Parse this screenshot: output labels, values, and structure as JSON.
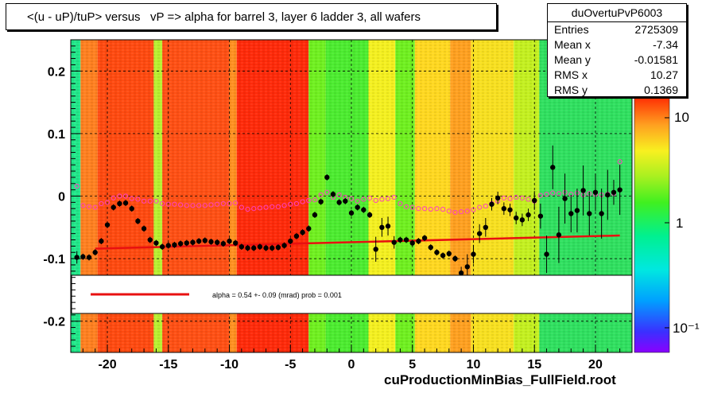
{
  "title": "<(u - uP)/tuP> versus   vP => alpha for barrel 3, layer 6 ladder 3, all wafers",
  "stats": {
    "name": "duOvertuPvP6003",
    "rows": [
      {
        "label": "Entries",
        "value": "2725309"
      },
      {
        "label": "Mean x",
        "value": "-7.34"
      },
      {
        "label": "Mean y",
        "value": "-0.01581"
      },
      {
        "label": "RMS x",
        "value": "10.27"
      },
      {
        "label": "RMS y",
        "value": "0.1369"
      }
    ]
  },
  "legend": {
    "fit_text": "alpha =    0.54 +-  0.09 (mrad) prob = 0.001",
    "line_color": "#e81010"
  },
  "footer": "cuProductionMinBias_FullField.root",
  "chart_data": {
    "type": "heatmap",
    "xlim": [
      -23,
      23
    ],
    "ylim": [
      -0.25,
      0.25
    ],
    "x_ticks": [
      -20,
      -15,
      -10,
      -5,
      0,
      5,
      10,
      15,
      20
    ],
    "y_ticks": [
      0.2,
      0.1,
      0,
      -0.1,
      -0.2
    ],
    "grid": true,
    "colorbar": {
      "log_scale": true,
      "tick_labels": [
        "10",
        "1",
        "10⁻¹"
      ]
    },
    "heatmap_bands": [
      {
        "x": [
          -23,
          -22.2
        ],
        "level": "cyan",
        "color": "#22e88a"
      },
      {
        "x": [
          -22.2,
          -20.8
        ],
        "level": "orange",
        "color": "#ff8020"
      },
      {
        "x": [
          -20.8,
          -16.2
        ],
        "level": "red-orange",
        "color": "#ff4a10"
      },
      {
        "x": [
          -16.2,
          -15.5
        ],
        "level": "yellow-green",
        "color": "#b8f030"
      },
      {
        "x": [
          -15.5,
          -10
        ],
        "level": "red-orange",
        "color": "#ff5014"
      },
      {
        "x": [
          -10,
          -9.4
        ],
        "level": "orange",
        "color": "#ff9020"
      },
      {
        "x": [
          -9.4,
          -3.5
        ],
        "level": "red",
        "color": "#ff2a0a"
      },
      {
        "x": [
          -3.5,
          -2.1
        ],
        "level": "green",
        "color": "#70f020"
      },
      {
        "x": [
          -2.1,
          1.4
        ],
        "level": "green",
        "color": "#4cec30"
      },
      {
        "x": [
          1.4,
          3.6
        ],
        "level": "yellow",
        "color": "#f4f020"
      },
      {
        "x": [
          3.6,
          5.2
        ],
        "level": "green",
        "color": "#70f020"
      },
      {
        "x": [
          5.2,
          8.1
        ],
        "level": "yellow",
        "color": "#ffd820"
      },
      {
        "x": [
          8.1,
          9.8
        ],
        "level": "orange",
        "color": "#ffa020"
      },
      {
        "x": [
          9.8,
          13.3
        ],
        "level": "yellow",
        "color": "#f8e020"
      },
      {
        "x": [
          13.3,
          15.4
        ],
        "level": "yellow-green",
        "color": "#c4f020"
      },
      {
        "x": [
          15.4,
          23
        ],
        "level": "green-cyan",
        "color": "#30e060"
      }
    ],
    "series": [
      {
        "name": "mean",
        "marker": "filled-circle",
        "color": "#000000",
        "x": [
          -22.5,
          -22,
          -21.5,
          -21,
          -20.5,
          -20,
          -19.5,
          -19,
          -18.5,
          -18,
          -17.5,
          -17,
          -16.5,
          -16,
          -15.5,
          -15,
          -14.5,
          -14,
          -13.5,
          -13,
          -12.5,
          -12,
          -11.5,
          -11,
          -10.5,
          -10,
          -9.5,
          -9,
          -8.5,
          -8,
          -7.5,
          -7,
          -6.5,
          -6,
          -5.5,
          -5,
          -4.5,
          -4,
          -3.5,
          -3,
          -2.5,
          -2,
          -1.5,
          -1,
          -0.5,
          0,
          0.5,
          1,
          1.5,
          2,
          2.5,
          3,
          3.5,
          4,
          4.5,
          5,
          5.5,
          6,
          6.5,
          7,
          7.5,
          8,
          8.5,
          9,
          9.5,
          10,
          10.5,
          11,
          11.5,
          12,
          12.5,
          13,
          13.5,
          14,
          14.5,
          15,
          15.5,
          16,
          16.5,
          17,
          17.5,
          18,
          18.5,
          19,
          19.5,
          20,
          20.5,
          21,
          21.5,
          22
        ],
        "y": [
          -0.098,
          -0.097,
          -0.098,
          -0.09,
          -0.072,
          -0.046,
          -0.018,
          -0.012,
          -0.011,
          -0.02,
          -0.04,
          -0.052,
          -0.07,
          -0.075,
          -0.081,
          -0.079,
          -0.078,
          -0.076,
          -0.075,
          -0.074,
          -0.072,
          -0.071,
          -0.073,
          -0.074,
          -0.076,
          -0.072,
          -0.075,
          -0.081,
          -0.083,
          -0.083,
          -0.081,
          -0.083,
          -0.083,
          -0.082,
          -0.079,
          -0.072,
          -0.064,
          -0.058,
          -0.052,
          -0.03,
          -0.009,
          0.03,
          0.003,
          -0.01,
          -0.008,
          -0.027,
          -0.018,
          -0.022,
          -0.03,
          -0.085,
          -0.05,
          -0.048,
          -0.074,
          -0.07,
          -0.07,
          -0.075,
          -0.072,
          -0.067,
          -0.082,
          -0.09,
          -0.095,
          -0.092,
          -0.1,
          -0.123,
          -0.113,
          -0.093,
          -0.06,
          -0.05,
          -0.013,
          -0.003,
          -0.02,
          -0.022,
          -0.035,
          -0.038,
          -0.03,
          -0.007,
          -0.032,
          -0.093,
          0.046,
          -0.062,
          -0.004,
          -0.028,
          -0.023,
          0.009,
          -0.028,
          0.006,
          -0.028,
          0.002,
          0.006,
          0.01
        ],
        "y_err": [
          0.01,
          0.005,
          0.005,
          0.005,
          0.005,
          0.005,
          0.005,
          0.005,
          0.005,
          0.005,
          0.005,
          0.005,
          0.005,
          0.005,
          0.005,
          0.005,
          0.005,
          0.005,
          0.005,
          0.005,
          0.005,
          0.005,
          0.005,
          0.005,
          0.005,
          0.005,
          0.005,
          0.005,
          0.005,
          0.005,
          0.005,
          0.005,
          0.005,
          0.005,
          0.005,
          0.005,
          0.005,
          0.005,
          0.005,
          0.005,
          0.005,
          0.005,
          0.005,
          0.005,
          0.005,
          0.005,
          0.005,
          0.005,
          0.005,
          0.02,
          0.015,
          0.015,
          0.01,
          0.005,
          0.005,
          0.005,
          0.005,
          0.005,
          0.005,
          0.005,
          0.005,
          0.005,
          0.005,
          0.01,
          0.02,
          0.015,
          0.015,
          0.015,
          0.01,
          0.01,
          0.01,
          0.01,
          0.01,
          0.01,
          0.01,
          0.015,
          0.02,
          0.03,
          0.035,
          0.045,
          0.04,
          0.03,
          0.035,
          0.04,
          0.035,
          0.03,
          0.04,
          0.04,
          0.02,
          0.04
        ]
      },
      {
        "name": "mode",
        "marker": "open-circle",
        "color": "#ff40c0",
        "x": [
          -22.5,
          -22,
          -21.5,
          -21,
          -20.5,
          -20,
          -19.5,
          -19,
          -18.5,
          -18,
          -17.5,
          -17,
          -16.5,
          -16,
          -15.5,
          -15,
          -14.5,
          -14,
          -13.5,
          -13,
          -12.5,
          -12,
          -11.5,
          -11,
          -10.5,
          -10,
          -9.5,
          -9,
          -8.5,
          -8,
          -7.5,
          -7,
          -6.5,
          -6,
          -5.5,
          -5,
          -4.5,
          -4,
          -3.5,
          -3,
          -2.5,
          -2,
          -1.5,
          -1,
          -0.5,
          0,
          0.5,
          1,
          1.5,
          2,
          2.5,
          3,
          3.5,
          4,
          4.5,
          5,
          5.5,
          6,
          6.5,
          7,
          7.5,
          8,
          8.5,
          9,
          9.5,
          10,
          10.5,
          11,
          11.5,
          12,
          12.5,
          13,
          13.5,
          14,
          14.5,
          15,
          15.5,
          16,
          16.5,
          17,
          17.5,
          18,
          18.5,
          19,
          19.5,
          20,
          20.5,
          21,
          21.5,
          22
        ],
        "y": [
          0.016,
          -0.015,
          -0.017,
          -0.018,
          -0.012,
          -0.01,
          -0.003,
          0.0,
          0.0,
          -0.004,
          -0.005,
          -0.008,
          -0.008,
          -0.008,
          -0.012,
          -0.013,
          -0.013,
          -0.014,
          -0.015,
          -0.015,
          -0.015,
          -0.015,
          -0.014,
          -0.013,
          -0.012,
          -0.012,
          -0.011,
          -0.018,
          -0.021,
          -0.02,
          -0.019,
          -0.018,
          -0.017,
          -0.017,
          -0.015,
          -0.013,
          -0.012,
          -0.009,
          -0.007,
          -0.006,
          0.002,
          0.006,
          -0.002,
          0.002,
          -0.002,
          -0.004,
          -0.008,
          -0.005,
          -0.003,
          -0.007,
          -0.005,
          -0.004,
          -0.002,
          -0.012,
          -0.017,
          -0.018,
          -0.02,
          -0.02,
          -0.021,
          -0.02,
          -0.021,
          -0.024,
          -0.026,
          -0.025,
          -0.024,
          -0.022,
          -0.018,
          -0.016,
          -0.012,
          -0.008,
          -0.003,
          -0.004,
          -0.002,
          -0.003,
          -0.005,
          -0.008,
          0.001,
          0.003,
          0.005,
          0.004,
          0.006,
          0.003,
          0.005,
          0.002,
          0.004,
          0.003,
          0.002,
          0.003,
          0.004,
          0.055
        ]
      }
    ],
    "fit_line": {
      "x": [
        -21,
        22
      ],
      "y": [
        -0.084,
        -0.063
      ]
    }
  }
}
